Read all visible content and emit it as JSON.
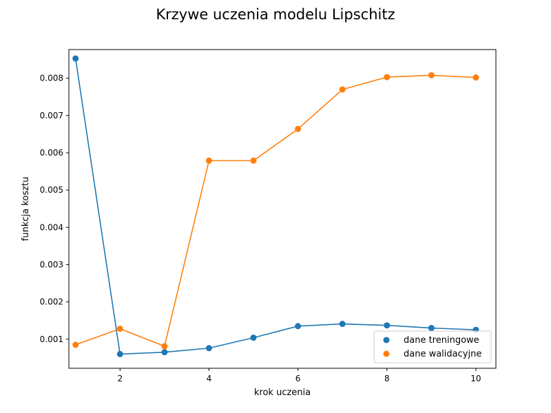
{
  "chart_data": {
    "type": "line",
    "title": "Krzywe uczenia modelu Lipschitz",
    "xlabel": "krok uczenia",
    "ylabel": "funkcja kosztu",
    "x": [
      1,
      2,
      3,
      4,
      5,
      6,
      7,
      8,
      9,
      10
    ],
    "xlim": [
      0.85,
      10.45
    ],
    "ylim": [
      0.00022,
      0.00877
    ],
    "xticks": [
      2,
      4,
      6,
      8,
      10
    ],
    "xtick_labels": [
      "2",
      "4",
      "6",
      "8",
      "10"
    ],
    "yticks": [
      0.001,
      0.002,
      0.003,
      0.004,
      0.005,
      0.006,
      0.007,
      0.008
    ],
    "ytick_labels": [
      "0.001",
      "0.002",
      "0.003",
      "0.004",
      "0.005",
      "0.006",
      "0.007",
      "0.008"
    ],
    "grid": false,
    "legend_position": "lower-right",
    "series": [
      {
        "name": "dane treningowe",
        "color": "#1f77b4",
        "values": [
          0.00853,
          0.0006,
          0.00065,
          0.00076,
          0.00104,
          0.00135,
          0.00141,
          0.00137,
          0.0013,
          0.00125
        ]
      },
      {
        "name": "dane walidacyjne",
        "color": "#ff7f0e",
        "values": [
          0.00085,
          0.00128,
          0.00081,
          0.00579,
          0.00579,
          0.00664,
          0.0077,
          0.00803,
          0.00808,
          0.00802
        ]
      }
    ]
  }
}
